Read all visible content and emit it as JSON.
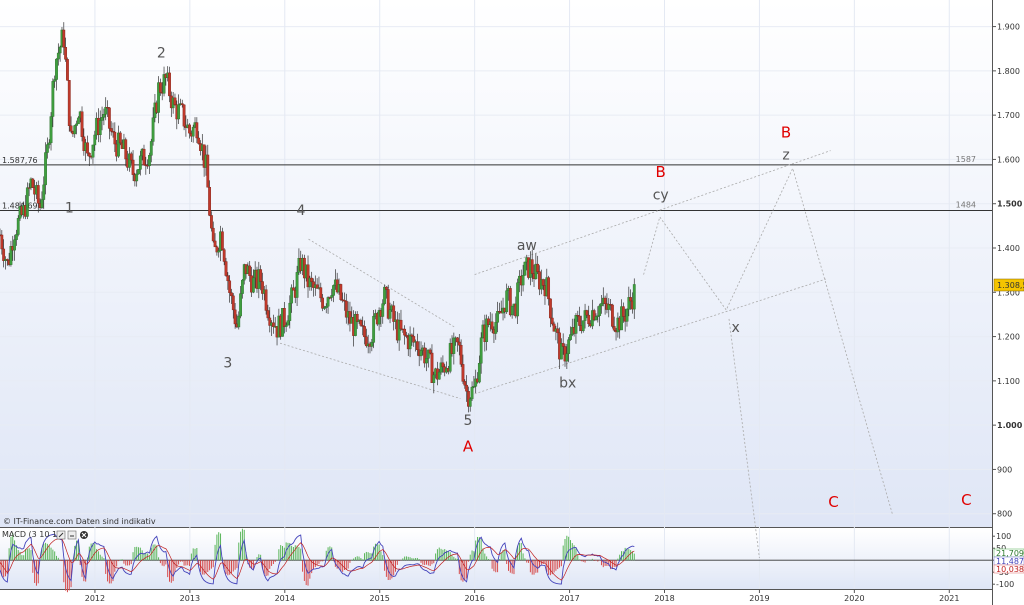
{
  "source_note": "© IT-Finance.com  Daten sind indikativ",
  "chart_data": {
    "type": "candlestick",
    "y_ticks": [
      "1.900",
      "1.800",
      "1.700",
      "1.600",
      "1.500",
      "1.400",
      "1.300",
      "1.200",
      "1.100",
      "1.000",
      "900",
      "800"
    ],
    "ylim": [
      770,
      1960
    ],
    "x_ticks": [
      "2012",
      "2013",
      "2014",
      "2015",
      "2016",
      "2017",
      "2018",
      "2019",
      "2020",
      "2021"
    ],
    "xlim": [
      2011.0,
      2021.45
    ],
    "price_path": [
      [
        2011.0,
        1430
      ],
      [
        2011.08,
        1360
      ],
      [
        2011.15,
        1440
      ],
      [
        2011.25,
        1480
      ],
      [
        2011.33,
        1550
      ],
      [
        2011.42,
        1490
      ],
      [
        2011.5,
        1620
      ],
      [
        2011.58,
        1820
      ],
      [
        2011.67,
        1880
      ],
      [
        2011.75,
        1640
      ],
      [
        2011.83,
        1720
      ],
      [
        2011.92,
        1600
      ],
      [
        2012.0,
        1660
      ],
      [
        2012.1,
        1710
      ],
      [
        2012.2,
        1640
      ],
      [
        2012.3,
        1620
      ],
      [
        2012.4,
        1570
      ],
      [
        2012.5,
        1600
      ],
      [
        2012.58,
        1620
      ],
      [
        2012.67,
        1760
      ],
      [
        2012.75,
        1780
      ],
      [
        2012.83,
        1720
      ],
      [
        2012.92,
        1700
      ],
      [
        2013.0,
        1660
      ],
      [
        2013.08,
        1680
      ],
      [
        2013.17,
        1580
      ],
      [
        2013.25,
        1380
      ],
      [
        2013.33,
        1440
      ],
      [
        2013.42,
        1300
      ],
      [
        2013.5,
        1220
      ],
      [
        2013.58,
        1360
      ],
      [
        2013.67,
        1320
      ],
      [
        2013.75,
        1330
      ],
      [
        2013.83,
        1260
      ],
      [
        2013.92,
        1220
      ],
      [
        2014.0,
        1240
      ],
      [
        2014.1,
        1300
      ],
      [
        2014.17,
        1370
      ],
      [
        2014.25,
        1320
      ],
      [
        2014.33,
        1300
      ],
      [
        2014.42,
        1280
      ],
      [
        2014.5,
        1320
      ],
      [
        2014.58,
        1290
      ],
      [
        2014.67,
        1240
      ],
      [
        2014.75,
        1220
      ],
      [
        2014.83,
        1200
      ],
      [
        2014.92,
        1210
      ],
      [
        2015.0,
        1270
      ],
      [
        2015.05,
        1290
      ],
      [
        2015.17,
        1220
      ],
      [
        2015.25,
        1200
      ],
      [
        2015.33,
        1190
      ],
      [
        2015.42,
        1180
      ],
      [
        2015.5,
        1150
      ],
      [
        2015.58,
        1110
      ],
      [
        2015.67,
        1130
      ],
      [
        2015.75,
        1160
      ],
      [
        2015.83,
        1180
      ],
      [
        2015.92,
        1070
      ],
      [
        2016.0,
        1080
      ],
      [
        2016.08,
        1200
      ],
      [
        2016.17,
        1240
      ],
      [
        2016.25,
        1230
      ],
      [
        2016.33,
        1290
      ],
      [
        2016.42,
        1260
      ],
      [
        2016.5,
        1340
      ],
      [
        2016.58,
        1360
      ],
      [
        2016.67,
        1330
      ],
      [
        2016.75,
        1320
      ],
      [
        2016.83,
        1230
      ],
      [
        2016.92,
        1150
      ],
      [
        2017.0,
        1190
      ],
      [
        2017.08,
        1230
      ],
      [
        2017.17,
        1240
      ],
      [
        2017.25,
        1260
      ],
      [
        2017.33,
        1270
      ],
      [
        2017.42,
        1260
      ],
      [
        2017.5,
        1230
      ],
      [
        2017.58,
        1250
      ],
      [
        2017.66,
        1290
      ],
      [
        2017.7,
        1308
      ]
    ],
    "current_value": "1.308,5",
    "levels": [
      {
        "value": 1587.76,
        "left_label": "1.587,76",
        "right_label": "1587"
      },
      {
        "value": 1484.69,
        "left_label": "1.484,69",
        "right_label": "1484"
      }
    ],
    "channels": [
      {
        "name": "triangle-upper",
        "points": [
          [
            2014.25,
            1420
          ],
          [
            2015.8,
            1220
          ]
        ]
      },
      {
        "name": "triangle-lower",
        "points": [
          [
            2013.95,
            1185
          ],
          [
            2015.85,
            1060
          ]
        ]
      },
      {
        "name": "channel-lower",
        "points": [
          [
            2015.92,
            1065
          ],
          [
            2019.7,
            1330
          ]
        ]
      },
      {
        "name": "channel-upper",
        "points": [
          [
            2016.0,
            1340
          ],
          [
            2019.75,
            1620
          ]
        ]
      }
    ],
    "projection": [
      [
        2017.78,
        1340
      ],
      [
        2017.95,
        1470
      ],
      [
        2018.65,
        1260
      ],
      [
        2019.35,
        1580
      ],
      [
        2020.4,
        800
      ]
    ],
    "projection2": [
      [
        2018.68,
        1240
      ],
      [
        2019.0,
        700
      ]
    ],
    "waves": [
      {
        "label": "1",
        "x": 2011.73,
        "y": 1480,
        "style": "grey"
      },
      {
        "label": "2",
        "x": 2012.7,
        "y": 1830,
        "style": "grey"
      },
      {
        "label": "3",
        "x": 2013.4,
        "y": 1130,
        "style": "grey"
      },
      {
        "label": "4",
        "x": 2014.17,
        "y": 1475,
        "style": "grey"
      },
      {
        "label": "aw",
        "x": 2016.55,
        "y": 1395,
        "style": "grey"
      },
      {
        "label": "5",
        "x": 2015.93,
        "y": 1000,
        "style": "grey"
      },
      {
        "label": "A",
        "x": 2015.93,
        "y": 940,
        "style": "red"
      },
      {
        "label": "bx",
        "x": 2016.98,
        "y": 1085,
        "style": "grey"
      },
      {
        "label": "cy",
        "x": 2017.96,
        "y": 1510,
        "style": "grey"
      },
      {
        "label": "B",
        "x": 2017.96,
        "y": 1560,
        "style": "red"
      },
      {
        "label": "x",
        "x": 2018.75,
        "y": 1210,
        "style": "grey"
      },
      {
        "label": "z",
        "x": 2019.28,
        "y": 1600,
        "style": "grey"
      },
      {
        "label": "B",
        "x": 2019.28,
        "y": 1650,
        "style": "red"
      },
      {
        "label": "C",
        "x": 2019.78,
        "y": 815,
        "style": "red"
      },
      {
        "label": "C",
        "x": 2021.18,
        "y": 820,
        "style": "red"
      }
    ]
  },
  "macd": {
    "title": "MACD (3 10 10)",
    "ticks": [
      "100",
      "50",
      "0",
      "-50",
      "-100"
    ],
    "ylim": [
      -120,
      130
    ],
    "values": [
      "21,709",
      "11,487",
      "10,038"
    ]
  }
}
